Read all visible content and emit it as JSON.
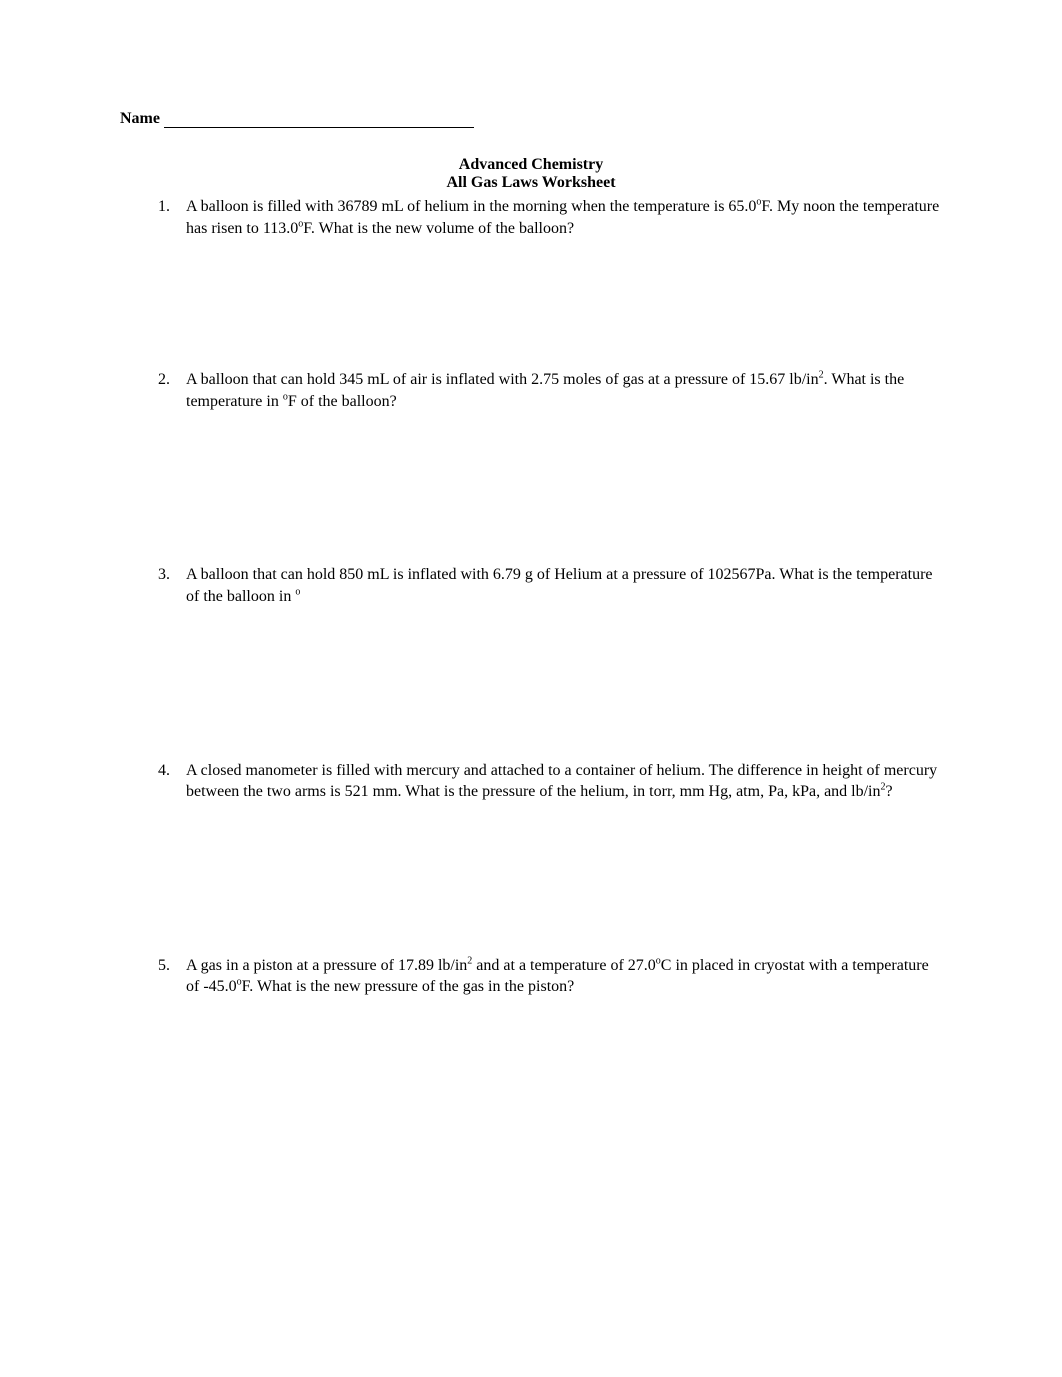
{
  "page": {
    "background_color": "#ffffff",
    "text_color": "#000000",
    "font_family": "Times New Roman",
    "body_fontsize": 16,
    "title_fontweight": "bold"
  },
  "name_field": {
    "label": "Name",
    "underline_width": 310
  },
  "header": {
    "course_title": "Advanced Chemistry",
    "worksheet_title": "All Gas Laws Worksheet"
  },
  "problems": [
    {
      "number": "1.",
      "text_parts": [
        {
          "t": "A balloon is filled with 36789 mL of helium in the morning when the temperature is 65.0"
        },
        {
          "t": "o",
          "sup": true
        },
        {
          "t": "F.  My noon the temperature has risen to 113.0"
        },
        {
          "t": "o",
          "sup": true
        },
        {
          "t": "F.  What is the new volume of the balloon?"
        }
      ],
      "space_after": 130
    },
    {
      "number": "2.",
      "text_parts": [
        {
          "t": "A balloon that can hold 345 mL of air is inflated with 2.75 moles of gas at a pressure of 15.67 lb/in"
        },
        {
          "t": "2",
          "sup": true
        },
        {
          "t": ".  What is the temperature in "
        },
        {
          "t": "o",
          "sup": true
        },
        {
          "t": "F of the balloon?"
        }
      ],
      "space_after": 152
    },
    {
      "number": "3.",
      "text_parts": [
        {
          "t": " A balloon that can hold 850 mL is inflated with 6.79 g of Helium at a pressure of 102567Pa.  What is the temperature of the balloon in "
        },
        {
          "t": "o",
          "sup": true
        }
      ],
      "space_after": 152
    },
    {
      "number": "4.",
      "text_parts": [
        {
          "t": "A closed manometer is filled with mercury and attached to a container of helium. The difference in height of mercury between the two arms is 521 mm. What is the pressure of the helium, in torr, mm Hg, atm, Pa, kPa, and lb/in"
        },
        {
          "t": "2",
          "sup": true
        },
        {
          "t": "?"
        }
      ],
      "space_after": 152
    },
    {
      "number": "5.",
      "text_parts": [
        {
          "t": "A gas in a piston at a pressure of 17.89 lb/in"
        },
        {
          "t": "2",
          "sup": true
        },
        {
          "t": " and at a temperature of 27.0"
        },
        {
          "t": "o",
          "sup": true
        },
        {
          "t": "C in placed in cryostat with a temperature of -45.0"
        },
        {
          "t": "o",
          "sup": true
        },
        {
          "t": "F.  What is the new pressure of the gas in the piston?"
        }
      ],
      "space_after": 0
    }
  ]
}
